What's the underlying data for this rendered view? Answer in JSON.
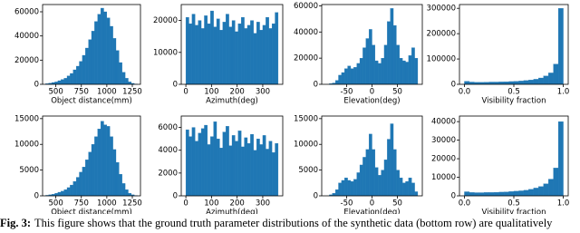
{
  "chart_data": [
    {
      "type": "histogram",
      "xlabel": "Object distance(mm)",
      "color": "#1f77b4",
      "bins": [
        400,
        430,
        460,
        490,
        520,
        550,
        580,
        610,
        640,
        670,
        700,
        730,
        760,
        790,
        820,
        850,
        880,
        910,
        940,
        970,
        1000,
        1030,
        1060,
        1090,
        1120,
        1150,
        1180,
        1210,
        1240,
        1270,
        1300
      ],
      "values": [
        500,
        1000,
        1500,
        2000,
        3000,
        4000,
        5000,
        7000,
        9000,
        12000,
        15000,
        19000,
        24000,
        30000,
        37000,
        44000,
        52000,
        58000,
        63000,
        60000,
        55000,
        48000,
        38000,
        28000,
        18000,
        10000,
        5000,
        2000,
        800,
        200
      ],
      "xlim": [
        370,
        1330
      ],
      "xticks": [
        500,
        750,
        1000,
        1250
      ],
      "ylim": [
        0,
        66000
      ],
      "yticks": [
        0,
        20000,
        40000,
        60000
      ]
    },
    {
      "type": "histogram",
      "xlabel": "Azimuth(deg)",
      "color": "#1f77b4",
      "bins": [
        0,
        12,
        24,
        36,
        48,
        60,
        72,
        84,
        96,
        108,
        120,
        132,
        144,
        156,
        168,
        180,
        192,
        204,
        216,
        228,
        240,
        252,
        264,
        276,
        288,
        300,
        312,
        324,
        336,
        348,
        360
      ],
      "values": [
        21000,
        19000,
        22000,
        18500,
        20000,
        17500,
        21500,
        19000,
        23000,
        18000,
        20500,
        17000,
        19500,
        22000,
        18000,
        20000,
        16500,
        19000,
        21000,
        17500,
        18500,
        20000,
        16000,
        19500,
        17000,
        18500,
        21000,
        17500,
        19000,
        22500
      ],
      "xlim": [
        -18,
        378
      ],
      "xticks": [
        0,
        100,
        200,
        300
      ],
      "ylim": [
        0,
        25000
      ],
      "yticks": [
        0,
        10000,
        20000
      ]
    },
    {
      "type": "histogram",
      "xlabel": "Elevation(deg)",
      "color": "#1f77b4",
      "bins": [
        -90,
        -84,
        -78,
        -72,
        -66,
        -60,
        -54,
        -48,
        -42,
        -36,
        -30,
        -24,
        -18,
        -12,
        -6,
        0,
        6,
        12,
        18,
        24,
        30,
        36,
        42,
        48,
        54,
        60,
        66,
        72,
        78,
        84,
        90
      ],
      "values": [
        0,
        500,
        1000,
        3000,
        7000,
        9000,
        12000,
        14000,
        12000,
        13000,
        16000,
        20000,
        28000,
        35000,
        42000,
        30000,
        18000,
        16000,
        20000,
        30000,
        48000,
        58000,
        45000,
        30000,
        20000,
        18000,
        17000,
        22000,
        28000,
        20000
      ],
      "xlim": [
        -99,
        99
      ],
      "xticks": [
        -50,
        0,
        50
      ],
      "ylim": [
        0,
        61000
      ],
      "yticks": [
        0,
        20000,
        40000,
        60000
      ]
    },
    {
      "type": "histogram",
      "xlabel": "Visibility fraction",
      "color": "#1f77b4",
      "bins": [
        0,
        0.05,
        0.1,
        0.15,
        0.2,
        0.25,
        0.3,
        0.35,
        0.4,
        0.45,
        0.5,
        0.55,
        0.6,
        0.65,
        0.7,
        0.75,
        0.8,
        0.85,
        0.9,
        0.95,
        1
      ],
      "values": [
        12000,
        9000,
        8000,
        8000,
        8500,
        9000,
        9000,
        9500,
        10000,
        11000,
        12000,
        13000,
        15000,
        17000,
        20000,
        25000,
        33000,
        45000,
        80000,
        300000
      ],
      "xlim": [
        -0.05,
        1.05
      ],
      "xticks": [
        {
          "value": 0,
          "label": "0.0"
        },
        0.5,
        {
          "value": 1,
          "label": "1.0"
        }
      ],
      "ylim": [
        0,
        315000
      ],
      "yticks": [
        0,
        100000,
        200000,
        300000
      ]
    },
    {
      "type": "histogram",
      "xlabel": "Object distance(mm)",
      "color": "#1f77b4",
      "bins": [
        400,
        430,
        460,
        490,
        520,
        550,
        580,
        610,
        640,
        670,
        700,
        730,
        760,
        790,
        820,
        850,
        880,
        910,
        940,
        970,
        1000,
        1030,
        1060,
        1090,
        1120,
        1150,
        1180,
        1210,
        1240,
        1270,
        1300
      ],
      "values": [
        100,
        200,
        300,
        500,
        700,
        900,
        1200,
        1600,
        2100,
        2800,
        3600,
        4600,
        5600,
        7000,
        8500,
        10000,
        11500,
        13000,
        14500,
        13800,
        13500,
        11500,
        9000,
        6500,
        4200,
        2400,
        1200,
        500,
        200,
        50
      ],
      "xlim": [
        370,
        1330
      ],
      "xticks": [
        500,
        750,
        1000,
        1250
      ],
      "ylim": [
        0,
        15500
      ],
      "yticks": [
        0,
        5000,
        10000,
        15000
      ]
    },
    {
      "type": "histogram",
      "xlabel": "Azimuth(deg)",
      "color": "#1f77b4",
      "bins": [
        0,
        12,
        24,
        36,
        48,
        60,
        72,
        84,
        96,
        108,
        120,
        132,
        144,
        156,
        168,
        180,
        192,
        204,
        216,
        228,
        240,
        252,
        264,
        276,
        288,
        300,
        312,
        324,
        336,
        348,
        360
      ],
      "values": [
        5800,
        5200,
        6000,
        4800,
        5500,
        5900,
        6200,
        4500,
        5200,
        6500,
        5000,
        4200,
        5600,
        6100,
        4400,
        5300,
        4800,
        5700,
        4300,
        5100,
        4600,
        5400,
        4000,
        5000,
        4500,
        5300,
        4100,
        4800,
        3800,
        4600
      ],
      "xlim": [
        -18,
        378
      ],
      "xticks": [
        0,
        100,
        200,
        300
      ],
      "ylim": [
        0,
        7000
      ],
      "yticks": [
        0,
        2000,
        4000,
        6000
      ]
    },
    {
      "type": "histogram",
      "xlabel": "Elevation(deg)",
      "color": "#1f77b4",
      "bins": [
        -90,
        -84,
        -78,
        -72,
        -66,
        -60,
        -54,
        -48,
        -42,
        -36,
        -30,
        -24,
        -18,
        -12,
        -6,
        0,
        6,
        12,
        18,
        24,
        30,
        36,
        42,
        48,
        54,
        60,
        66,
        72,
        78,
        84,
        90
      ],
      "values": [
        0,
        200,
        500,
        1200,
        2500,
        3000,
        3500,
        3000,
        2800,
        3200,
        4500,
        6000,
        7500,
        9000,
        12000,
        9000,
        5500,
        4000,
        5000,
        7000,
        11000,
        14000,
        9000,
        5000,
        3500,
        2500,
        2800,
        3500,
        2500,
        800
      ],
      "xlim": [
        -99,
        99
      ],
      "xticks": [
        -50,
        0,
        50
      ],
      "ylim": [
        0,
        15500
      ],
      "yticks": [
        0,
        5000,
        10000,
        15000
      ]
    },
    {
      "type": "histogram",
      "xlabel": "Visibility fraction",
      "color": "#1f77b4",
      "bins": [
        0,
        0.05,
        0.1,
        0.15,
        0.2,
        0.25,
        0.3,
        0.35,
        0.4,
        0.45,
        0.5,
        0.55,
        0.6,
        0.65,
        0.7,
        0.75,
        0.8,
        0.85,
        0.9,
        0.95,
        1
      ],
      "values": [
        2200,
        1800,
        1700,
        1700,
        1800,
        1800,
        1900,
        2000,
        2100,
        2300,
        2500,
        2700,
        3000,
        3500,
        4200,
        5000,
        6500,
        9000,
        15000,
        40000
      ],
      "xlim": [
        -0.05,
        1.05
      ],
      "xticks": [
        {
          "value": 0,
          "label": "0.0"
        },
        0.5,
        {
          "value": 1,
          "label": "1.0"
        }
      ],
      "ylim": [
        0,
        43000
      ],
      "yticks": [
        0,
        10000,
        20000,
        30000,
        40000
      ]
    }
  ],
  "caption": {
    "label": "Fig. 3:",
    "text": "This figure shows that the ground truth parameter distributions of the synthetic data (bottom row) are qualitatively"
  }
}
